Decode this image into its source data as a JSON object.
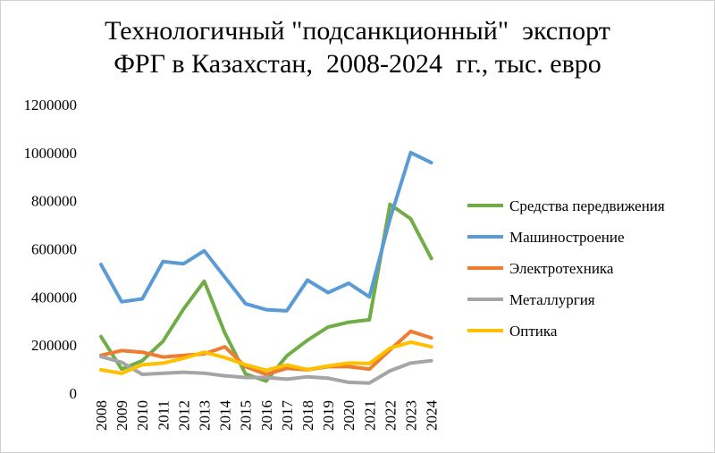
{
  "chart_data": {
    "type": "line",
    "title_lines": [
      "Технологичный \"подсанкционный\"  экспорт",
      "ФРГ в Казахстан,  2008-2024  гг., тыс. евро"
    ],
    "categories": [
      "2008",
      "2009",
      "2010",
      "2011",
      "2012",
      "2013",
      "2014",
      "2015",
      "2016",
      "2017",
      "2018",
      "2019",
      "2020",
      "2021",
      "2022",
      "2023",
      "2024"
    ],
    "ylim": [
      0,
      1200000
    ],
    "yticks": [
      "0",
      "200000",
      "400000",
      "600000",
      "800000",
      "1000000",
      "1200000"
    ],
    "grid": false,
    "legend_position": "right",
    "series": [
      {
        "name": "Средства передвижения",
        "color": "#70ad47",
        "values": [
          235000,
          100000,
          135000,
          215000,
          350000,
          465000,
          250000,
          80000,
          50000,
          155000,
          220000,
          275000,
          295000,
          305000,
          785000,
          725000,
          560000
        ]
      },
      {
        "name": "Машиностроение",
        "color": "#5b9bd5",
        "values": [
          535000,
          380000,
          392000,
          547000,
          538000,
          592000,
          482000,
          372000,
          347000,
          342000,
          470000,
          418000,
          457000,
          400000,
          725000,
          1000000,
          958000
        ]
      },
      {
        "name": "Электротехника",
        "color": "#ed7d31",
        "values": [
          157000,
          177000,
          170000,
          150000,
          157000,
          163000,
          193000,
          110000,
          78000,
          103000,
          97000,
          110000,
          110000,
          100000,
          180000,
          257000,
          230000
        ]
      },
      {
        "name": "Металлургия",
        "color": "#a5a5a5",
        "values": [
          152000,
          128000,
          78000,
          83000,
          87000,
          83000,
          72000,
          65000,
          65000,
          58000,
          68000,
          62000,
          45000,
          42000,
          93000,
          125000,
          135000
        ]
      },
      {
        "name": "Оптика",
        "color": "#ffc000",
        "values": [
          97000,
          82000,
          118000,
          125000,
          145000,
          170000,
          148000,
          118000,
          95000,
          117000,
          98000,
          113000,
          125000,
          123000,
          187000,
          212000,
          193000
        ]
      }
    ]
  }
}
